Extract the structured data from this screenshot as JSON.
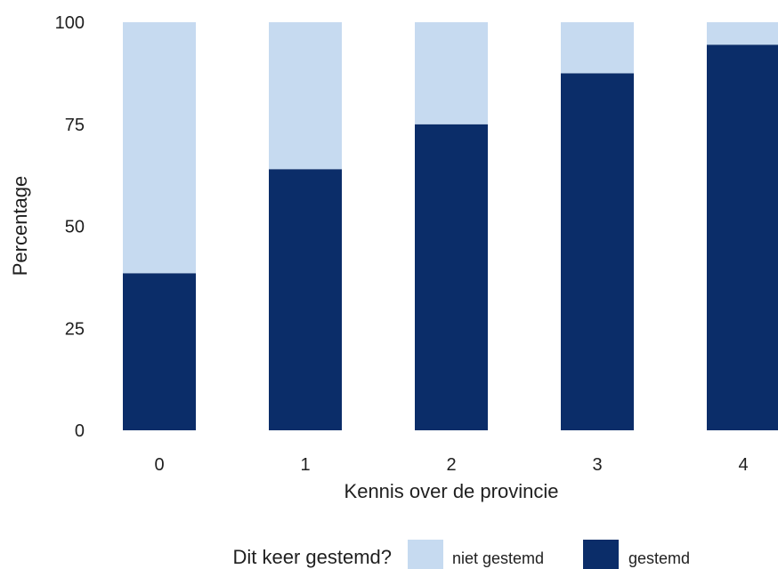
{
  "chart_data": {
    "type": "bar",
    "stacked": true,
    "categories": [
      "0",
      "1",
      "2",
      "3",
      "4"
    ],
    "series": [
      {
        "name": "gestemd",
        "values": [
          38.5,
          64,
          75,
          87.5,
          94.5
        ],
        "color": "#0b2d69"
      },
      {
        "name": "niet gestemd",
        "values": [
          61.5,
          36,
          25,
          12.5,
          5.5
        ],
        "color": "#c6daf0"
      }
    ],
    "xlabel": "Kennis over de provincie",
    "ylabel": "Percentage",
    "ylim": [
      0,
      100
    ],
    "yticks": [
      0,
      25,
      50,
      75,
      100
    ],
    "grid": false,
    "legend": {
      "title": "Dit keer gestemd?",
      "position": "bottom",
      "items": [
        {
          "label": "niet gestemd",
          "color": "#c6daf0"
        },
        {
          "label": "gestemd",
          "color": "#0b2d69"
        }
      ]
    }
  }
}
